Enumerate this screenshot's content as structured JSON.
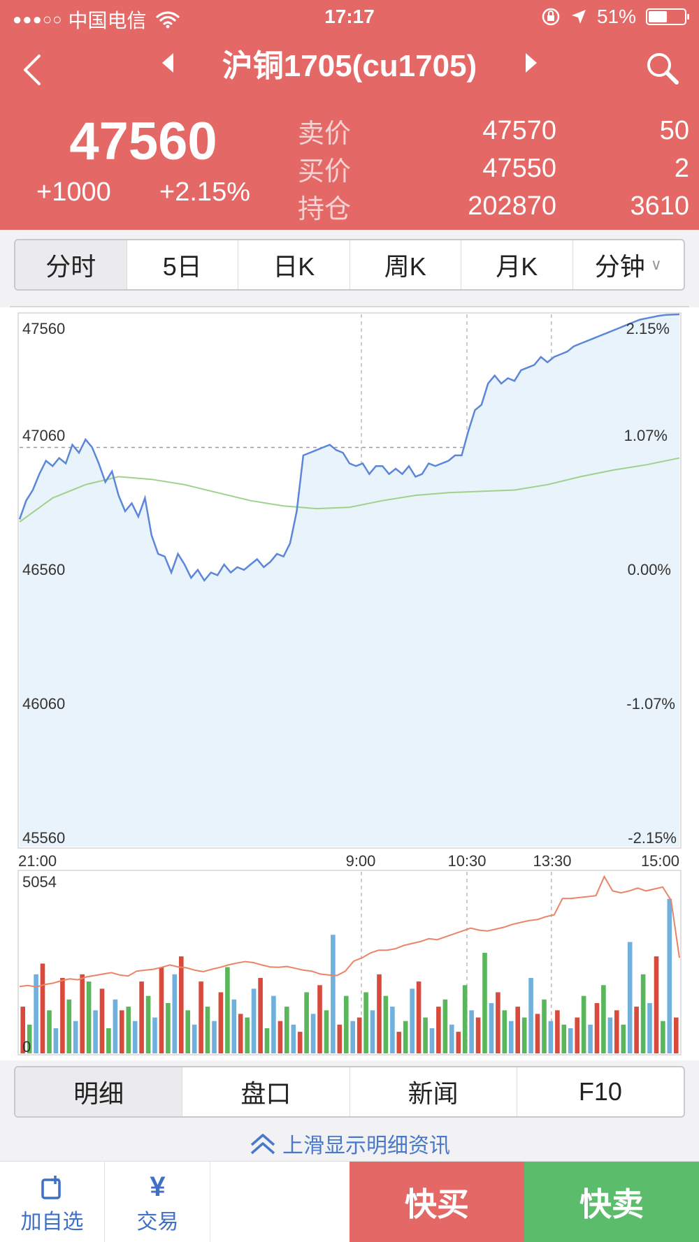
{
  "status_bar": {
    "carrier": "中国电信",
    "signal_dots": "●●●○○",
    "time": "17:17",
    "battery": "51%",
    "battery_level": 0.51
  },
  "header": {
    "title": "沪铜1705(cu1705)",
    "last_price": "47560",
    "change": "+1000",
    "change_pct": "+2.15%",
    "quotes": [
      {
        "label": "卖价",
        "price": "47570",
        "volume": "50"
      },
      {
        "label": "买价",
        "price": "47550",
        "volume": "2"
      },
      {
        "label": "持仓",
        "price": "202870",
        "volume": "3610"
      }
    ]
  },
  "period_tabs": [
    {
      "label": "分时",
      "active": true
    },
    {
      "label": "5日",
      "active": false
    },
    {
      "label": "日K",
      "active": false
    },
    {
      "label": "周K",
      "active": false
    },
    {
      "label": "月K",
      "active": false
    },
    {
      "label": "分钟",
      "active": false,
      "dropdown": true
    }
  ],
  "chart_data": [
    {
      "type": "line",
      "y_left_labels": [
        "47560",
        "47060",
        "46560",
        "46060",
        "45560"
      ],
      "y_right_labels": [
        "2.15%",
        "1.07%",
        "0.00%",
        "-1.07%",
        "-2.15%"
      ],
      "x_labels": [
        "21:00",
        "9:00",
        "10:30",
        "13:30",
        "15:00"
      ],
      "ylim": [
        45560,
        47560
      ],
      "prev_settle": 46560,
      "grid": "dashed",
      "series": [
        {
          "role": "price",
          "color": "#5b86d9",
          "x": [
            0,
            0.01,
            0.02,
            0.03,
            0.04,
            0.05,
            0.06,
            0.07,
            0.08,
            0.09,
            0.1,
            0.11,
            0.12,
            0.13,
            0.14,
            0.15,
            0.16,
            0.17,
            0.18,
            0.19,
            0.2,
            0.21,
            0.22,
            0.23,
            0.24,
            0.25,
            0.26,
            0.27,
            0.28,
            0.29,
            0.3,
            0.31,
            0.32,
            0.33,
            0.34,
            0.35,
            0.36,
            0.37,
            0.38,
            0.39,
            0.4,
            0.41,
            0.42,
            0.43,
            0.44,
            0.45,
            0.46,
            0.47,
            0.48,
            0.49,
            0.5,
            0.51,
            0.52,
            0.53,
            0.54,
            0.55,
            0.56,
            0.57,
            0.58,
            0.59,
            0.6,
            0.61,
            0.62,
            0.63,
            0.64,
            0.65,
            0.66,
            0.67,
            0.68,
            0.69,
            0.7,
            0.71,
            0.72,
            0.73,
            0.74,
            0.75,
            0.76,
            0.77,
            0.78,
            0.79,
            0.8,
            0.81,
            0.82,
            0.83,
            0.84,
            0.85,
            0.86,
            0.87,
            0.88,
            0.89,
            0.9,
            0.91,
            0.92,
            0.93,
            0.94,
            0.95,
            0.96,
            0.97,
            0.98,
            0.99,
            1.0
          ],
          "values": [
            46790,
            46860,
            46900,
            46960,
            47010,
            46990,
            47020,
            47000,
            47070,
            47040,
            47090,
            47060,
            47000,
            46930,
            46970,
            46880,
            46820,
            46850,
            46800,
            46870,
            46730,
            46660,
            46650,
            46590,
            46660,
            46620,
            46570,
            46600,
            46560,
            46590,
            46580,
            46620,
            46590,
            46610,
            46600,
            46620,
            46640,
            46610,
            46630,
            46660,
            46650,
            46700,
            46820,
            47030,
            47040,
            47050,
            47060,
            47070,
            47050,
            47040,
            47000,
            46990,
            47000,
            46960,
            46990,
            46990,
            46960,
            46980,
            46960,
            46990,
            46950,
            46960,
            47000,
            46990,
            47000,
            47010,
            47030,
            47030,
            47120,
            47200,
            47220,
            47300,
            47330,
            47300,
            47320,
            47310,
            47350,
            47360,
            47370,
            47400,
            47380,
            47400,
            47410,
            47420,
            47440,
            47450,
            47460,
            47470,
            47480,
            47490,
            47500,
            47510,
            47520,
            47530,
            47540,
            47545,
            47550,
            47555,
            47558,
            47559,
            47560
          ]
        },
        {
          "role": "average",
          "color": "#9fd18a",
          "x": [
            0,
            0.05,
            0.1,
            0.15,
            0.2,
            0.25,
            0.3,
            0.35,
            0.4,
            0.45,
            0.5,
            0.55,
            0.6,
            0.65,
            0.7,
            0.75,
            0.8,
            0.85,
            0.9,
            0.95,
            1.0
          ],
          "values": [
            46780,
            46870,
            46920,
            46950,
            46940,
            46920,
            46890,
            46860,
            46840,
            46830,
            46835,
            46860,
            46880,
            46890,
            46895,
            46900,
            46920,
            46950,
            46975,
            46995,
            47020
          ]
        }
      ]
    },
    {
      "type": "bar",
      "y_labels": [
        "5054",
        "0"
      ],
      "ylim": [
        0,
        5054
      ],
      "colors": [
        "#d84a3c",
        "#5ab65b",
        "#6fb0dd"
      ],
      "bars": [
        1300,
        800,
        2200,
        2500,
        1200,
        700,
        2100,
        1500,
        900,
        2200,
        2000,
        1200,
        1800,
        700,
        1500,
        1200,
        1300,
        900,
        2000,
        1600,
        1000,
        2400,
        1400,
        2200,
        2700,
        1200,
        800,
        2000,
        1300,
        900,
        1700,
        2400,
        1500,
        1100,
        1000,
        1800,
        2100,
        700,
        1600,
        900,
        1300,
        800,
        600,
        1700,
        1100,
        1900,
        1200,
        3300,
        800,
        1600,
        900,
        1000,
        1700,
        1200,
        2200,
        1600,
        1300,
        600,
        900,
        1800,
        2000,
        1000,
        700,
        1300,
        1500,
        800,
        600,
        1900,
        1200,
        1000,
        2800,
        1400,
        1700,
        1200,
        900,
        1300,
        1000,
        2100,
        1100,
        1500,
        900,
        1200,
        800,
        700,
        1000,
        1600,
        800,
        1400,
        1900,
        1000,
        1200,
        800,
        3100,
        1300,
        2200,
        1400,
        2700,
        900,
        4300,
        1000
      ],
      "open_interest": [
        700,
        710,
        695,
        720,
        735,
        760,
        780,
        770,
        800,
        815,
        830,
        845,
        820,
        810,
        860,
        870,
        880,
        900,
        925,
        905,
        895,
        870,
        855,
        880,
        900,
        925,
        945,
        960,
        950,
        925,
        905,
        900,
        910,
        890,
        870,
        860,
        830,
        820,
        815,
        860,
        965,
        1000,
        1050,
        1080,
        1080,
        1095,
        1130,
        1150,
        1170,
        1200,
        1190,
        1220,
        1250,
        1280,
        1310,
        1290,
        1280,
        1300,
        1320,
        1350,
        1370,
        1390,
        1400,
        1430,
        1450,
        1620,
        1620,
        1630,
        1640,
        1650,
        1850,
        1700,
        1680,
        1700,
        1730,
        1700,
        1720,
        1740,
        1600,
        1000
      ]
    }
  ],
  "detail_tabs": [
    {
      "label": "明细",
      "active": true
    },
    {
      "label": "盘口",
      "active": false
    },
    {
      "label": "新闻",
      "active": false
    },
    {
      "label": "F10",
      "active": false
    }
  ],
  "swipe_hint": "上滑显示明细资讯",
  "toolbar": {
    "watch_label": "加自选",
    "trade_label": "交易",
    "trade_icon_glyph": "¥",
    "quick_buy": "快买",
    "quick_sell": "快卖"
  },
  "icons": [
    "signal-dots-icon",
    "wifi-icon",
    "lock-rotation-icon",
    "location-arrow-icon",
    "battery-icon",
    "back-arrow-icon",
    "triangle-left-icon",
    "triangle-right-icon",
    "search-icon",
    "chevron-down-icon",
    "double-chevron-up-icon",
    "add-watchlist-icon",
    "yen-icon"
  ]
}
